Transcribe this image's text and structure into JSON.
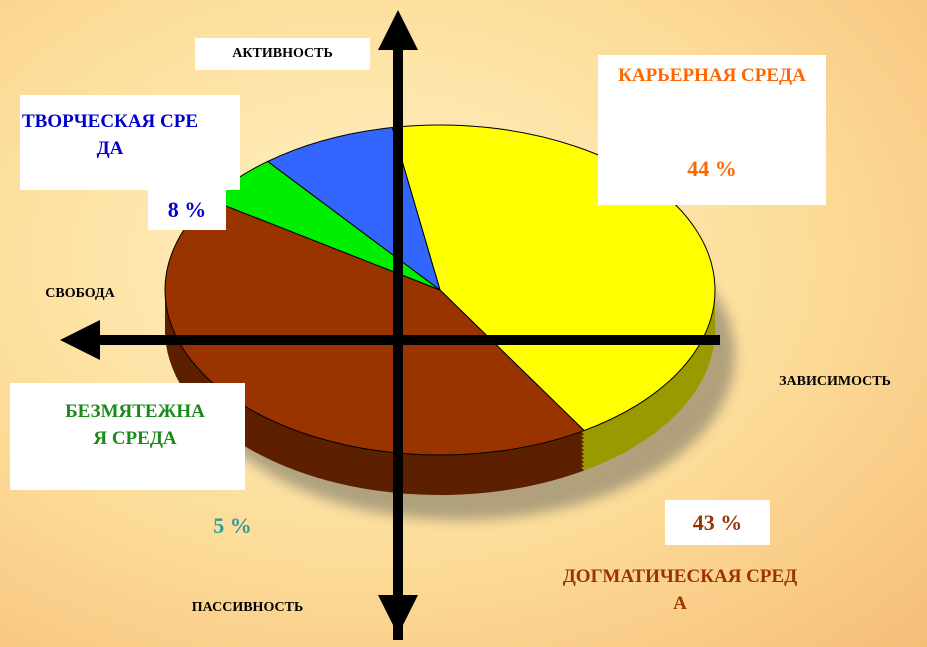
{
  "chart_data": {
    "type": "pie",
    "categories": [
      "КАРЬЕРНАЯ СРЕДА",
      "ДОГМАТИЧЕСКАЯ СРЕДА",
      "БЕЗМЯТЕЖНАЯ СРЕДА",
      "ТВОРЧЕСКАЯ СРЕДА"
    ],
    "values": [
      44,
      43,
      5,
      8
    ],
    "value_labels": [
      "44 %",
      "43 %",
      "5 %",
      "8 %"
    ],
    "colors": [
      "#ffff00",
      "#993300",
      "#00ee00",
      "#3366ff"
    ],
    "label_colors": [
      "#ff6600",
      "#993300",
      "#1a8a1a",
      "#0000cc"
    ],
    "axis_labels": {
      "top": "АКТИВНОСТЬ",
      "bottom": "ПАССИВНОСТЬ",
      "left": "СВОБОДА",
      "right": "ЗАВИСИМОСТЬ"
    }
  }
}
